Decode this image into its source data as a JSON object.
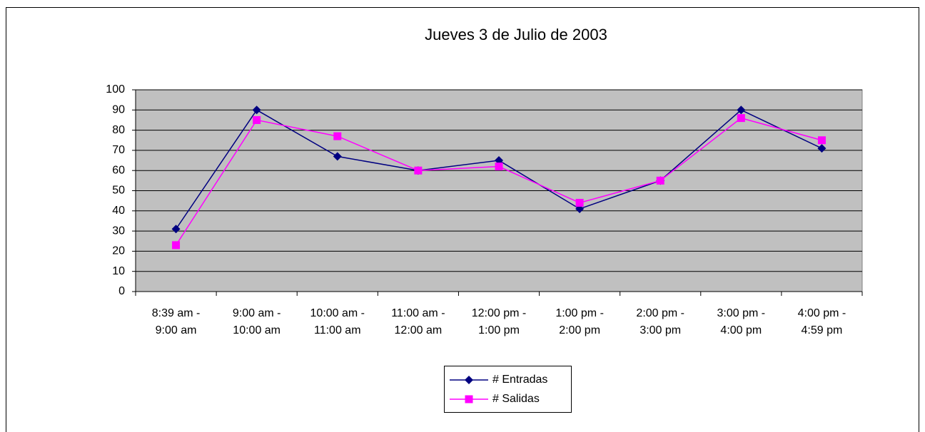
{
  "chart_data": {
    "type": "line",
    "title": "Jueves 3 de Julio de 2003",
    "categories": [
      "8:39 am - 9:00 am",
      "9:00 am - 10:00 am",
      "10:00 am - 11:00 am",
      "11:00 am - 12:00 am",
      "12:00 pm - 1:00 pm",
      "1:00 pm - 2:00 pm",
      "2:00 pm - 3:00 pm",
      "3:00 pm - 4:00 pm",
      "4:00 pm - 4:59 pm"
    ],
    "series": [
      {
        "name": "# Entradas",
        "color": "#000080",
        "marker": "diamond",
        "values": [
          31,
          90,
          67,
          60,
          65,
          41,
          55,
          90,
          71
        ]
      },
      {
        "name": "# Salidas",
        "color": "#ff00ff",
        "marker": "square",
        "values": [
          23,
          85,
          77,
          60,
          62,
          44,
          55,
          86,
          75
        ]
      }
    ],
    "ylim": [
      0,
      100
    ],
    "yticks": [
      0,
      10,
      20,
      30,
      40,
      50,
      60,
      70,
      80,
      90,
      100
    ],
    "grid": true,
    "plot_background": "#c0c0c0",
    "legend": "bottom"
  }
}
